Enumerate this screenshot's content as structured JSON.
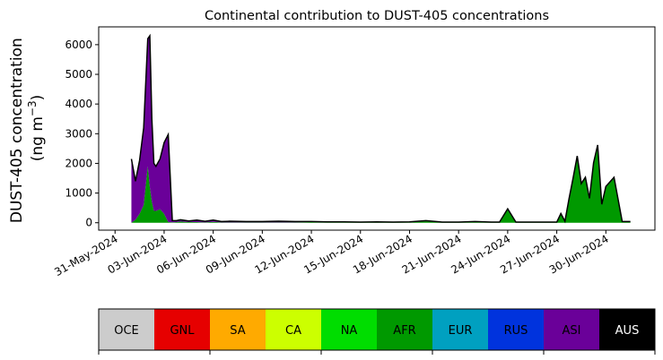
{
  "chart_data": {
    "type": "area",
    "title": "Continental contribution to DUST-405 concentrations",
    "ylabel_line1": "DUST-405 concentration",
    "ylabel_line2_prefix": "(ng m",
    "ylabel_line2_sup": "−3",
    "ylabel_line2_suffix": ")",
    "xlabel": "",
    "ylim": [
      -250,
      6600
    ],
    "xlim": [
      "2024-05-30",
      "2024-07-03"
    ],
    "yticks": [
      0,
      1000,
      2000,
      3000,
      4000,
      5000,
      6000
    ],
    "xticks": [
      "2024-05-31",
      "2024-06-03",
      "2024-06-06",
      "2024-06-09",
      "2024-06-12",
      "2024-06-15",
      "2024-06-18",
      "2024-06-21",
      "2024-06-24",
      "2024-06-27",
      "2024-06-30"
    ],
    "xtick_labels": [
      "31-May-2024",
      "03-Jun-2024",
      "06-Jun-2024",
      "09-Jun-2024",
      "12-Jun-2024",
      "15-Jun-2024",
      "18-Jun-2024",
      "21-Jun-2024",
      "24-Jun-2024",
      "27-Jun-2024",
      "30-Jun-2024"
    ],
    "grid": false,
    "x": [
      "2024-06-01T00:00",
      "2024-06-01T06:00",
      "2024-06-01T12:00",
      "2024-06-01T18:00",
      "2024-06-02T00:00",
      "2024-06-02T03:00",
      "2024-06-02T06:00",
      "2024-06-02T09:00",
      "2024-06-02T12:00",
      "2024-06-02T18:00",
      "2024-06-03T00:00",
      "2024-06-03T06:00",
      "2024-06-03T12:00",
      "2024-06-03T18:00",
      "2024-06-04T00:00",
      "2024-06-04T12:00",
      "2024-06-05T00:00",
      "2024-06-05T12:00",
      "2024-06-06T00:00",
      "2024-06-06T12:00",
      "2024-06-07T00:00",
      "2024-06-08T00:00",
      "2024-06-09T00:00",
      "2024-06-10T00:00",
      "2024-06-11T00:00",
      "2024-06-12T00:00",
      "2024-06-13T00:00",
      "2024-06-14T00:00",
      "2024-06-15T00:00",
      "2024-06-16T00:00",
      "2024-06-17T00:00",
      "2024-06-18T00:00",
      "2024-06-19T00:00",
      "2024-06-20T00:00",
      "2024-06-21T00:00",
      "2024-06-22T00:00",
      "2024-06-23T00:00",
      "2024-06-23T12:00",
      "2024-06-24T00:00",
      "2024-06-24T12:00",
      "2024-06-25T00:00",
      "2024-06-25T12:00",
      "2024-06-26T00:00",
      "2024-06-26T12:00",
      "2024-06-27T00:00",
      "2024-06-27T06:00",
      "2024-06-27T12:00",
      "2024-06-27T18:00",
      "2024-06-28T00:00",
      "2024-06-28T06:00",
      "2024-06-28T12:00",
      "2024-06-28T18:00",
      "2024-06-29T00:00",
      "2024-06-29T06:00",
      "2024-06-29T12:00",
      "2024-06-29T18:00",
      "2024-06-30T00:00",
      "2024-06-30T12:00",
      "2024-07-01T00:00",
      "2024-07-01T12:00"
    ],
    "series": [
      {
        "name": "OCE",
        "color": "#cccccc",
        "values": [
          0,
          0,
          0,
          0,
          0,
          0,
          0,
          0,
          0,
          0,
          0,
          0,
          0,
          0,
          0,
          0,
          0,
          0,
          0,
          0,
          0,
          0,
          0,
          0,
          0,
          0,
          0,
          0,
          0,
          0,
          0,
          0,
          0,
          0,
          0,
          0,
          0,
          0,
          0,
          0,
          0,
          0,
          0,
          0,
          0,
          0,
          0,
          0,
          0,
          0,
          0,
          0,
          0,
          0,
          0,
          0,
          0,
          0,
          0,
          0
        ]
      },
      {
        "name": "GNL",
        "color": "#e60000",
        "values": [
          0,
          0,
          0,
          0,
          0,
          0,
          0,
          0,
          0,
          0,
          0,
          0,
          0,
          0,
          0,
          0,
          0,
          0,
          0,
          0,
          0,
          0,
          0,
          0,
          0,
          0,
          0,
          0,
          0,
          0,
          0,
          0,
          0,
          0,
          0,
          0,
          0,
          0,
          0,
          0,
          0,
          0,
          0,
          0,
          0,
          0,
          0,
          0,
          0,
          0,
          0,
          0,
          0,
          0,
          0,
          0,
          0,
          0,
          0,
          0
        ]
      },
      {
        "name": "SA",
        "color": "#ffaa00",
        "values": [
          0,
          0,
          0,
          0,
          0,
          0,
          0,
          0,
          0,
          0,
          0,
          0,
          0,
          0,
          0,
          0,
          0,
          0,
          0,
          0,
          0,
          0,
          0,
          0,
          0,
          0,
          0,
          0,
          0,
          0,
          0,
          0,
          0,
          0,
          0,
          0,
          0,
          0,
          0,
          0,
          0,
          0,
          0,
          0,
          0,
          0,
          0,
          0,
          0,
          0,
          0,
          0,
          0,
          0,
          0,
          0,
          0,
          0,
          0,
          0
        ]
      },
      {
        "name": "CA",
        "color": "#ccff00",
        "values": [
          0,
          0,
          0,
          0,
          0,
          0,
          0,
          0,
          0,
          0,
          0,
          0,
          0,
          0,
          0,
          0,
          0,
          0,
          0,
          0,
          0,
          0,
          0,
          0,
          0,
          0,
          0,
          0,
          0,
          0,
          0,
          0,
          0,
          0,
          0,
          0,
          0,
          0,
          0,
          0,
          0,
          0,
          0,
          0,
          0,
          0,
          0,
          0,
          0,
          0,
          0,
          0,
          0,
          0,
          0,
          0,
          0,
          0,
          0,
          0
        ]
      },
      {
        "name": "NA",
        "color": "#00dd00",
        "values": [
          0,
          0,
          0,
          0,
          0,
          0,
          0,
          0,
          0,
          0,
          0,
          0,
          0,
          0,
          0,
          0,
          0,
          0,
          0,
          0,
          0,
          0,
          0,
          0,
          0,
          0,
          0,
          0,
          0,
          0,
          0,
          0,
          0,
          0,
          0,
          0,
          0,
          0,
          0,
          0,
          0,
          0,
          0,
          0,
          0,
          0,
          0,
          0,
          0,
          0,
          0,
          0,
          0,
          0,
          0,
          0,
          0,
          0,
          0,
          0
        ]
      },
      {
        "name": "AFR",
        "color": "#009900",
        "values": [
          0,
          100,
          300,
          600,
          1900,
          1200,
          700,
          400,
          400,
          450,
          300,
          20,
          15,
          20,
          40,
          20,
          20,
          10,
          30,
          10,
          10,
          10,
          10,
          10,
          10,
          20,
          10,
          10,
          10,
          10,
          10,
          10,
          50,
          10,
          10,
          30,
          10,
          10,
          450,
          10,
          10,
          10,
          10,
          10,
          10,
          300,
          40,
          800,
          1500,
          2200,
          1300,
          1500,
          800,
          2000,
          2600,
          600,
          1200,
          1500,
          20,
          20
        ]
      },
      {
        "name": "EUR",
        "color": "#00a0c0",
        "values": [
          0,
          0,
          0,
          0,
          0,
          0,
          0,
          0,
          0,
          0,
          0,
          0,
          0,
          0,
          0,
          0,
          0,
          0,
          0,
          0,
          0,
          0,
          0,
          0,
          0,
          0,
          0,
          0,
          0,
          0,
          0,
          0,
          0,
          0,
          0,
          0,
          0,
          0,
          0,
          0,
          0,
          0,
          0,
          0,
          0,
          0,
          0,
          0,
          0,
          0,
          0,
          0,
          0,
          0,
          0,
          0,
          0,
          0,
          0,
          0
        ]
      },
      {
        "name": "RUS",
        "color": "#0033dd",
        "values": [
          0,
          0,
          0,
          0,
          0,
          0,
          0,
          0,
          0,
          0,
          0,
          0,
          0,
          0,
          0,
          0,
          0,
          0,
          0,
          0,
          0,
          0,
          0,
          0,
          0,
          0,
          0,
          0,
          0,
          0,
          0,
          0,
          0,
          0,
          0,
          0,
          0,
          0,
          0,
          0,
          0,
          0,
          0,
          0,
          0,
          0,
          0,
          0,
          0,
          0,
          0,
          0,
          0,
          0,
          0,
          0,
          0,
          0,
          0,
          0
        ]
      },
      {
        "name": "ASI",
        "color": "#6a0099",
        "values": [
          2150,
          1300,
          1800,
          2600,
          4300,
          5100,
          2800,
          1600,
          1500,
          1700,
          2400,
          2950,
          60,
          50,
          60,
          40,
          70,
          40,
          60,
          30,
          40,
          30,
          30,
          40,
          30,
          20,
          20,
          20,
          10,
          20,
          10,
          20,
          20,
          10,
          10,
          10,
          10,
          10,
          20,
          10,
          10,
          10,
          10,
          10,
          10,
          10,
          10,
          10,
          10,
          50,
          20,
          30,
          20,
          20,
          20,
          20,
          20,
          30,
          20,
          20
        ]
      },
      {
        "name": "AUS",
        "color": "#000000",
        "values": [
          0,
          0,
          0,
          0,
          0,
          0,
          0,
          0,
          0,
          0,
          0,
          0,
          0,
          0,
          0,
          0,
          0,
          0,
          0,
          0,
          0,
          0,
          0,
          0,
          0,
          0,
          0,
          0,
          0,
          0,
          0,
          0,
          0,
          0,
          0,
          0,
          0,
          0,
          0,
          0,
          0,
          0,
          0,
          0,
          0,
          0,
          0,
          0,
          0,
          0,
          0,
          0,
          0,
          0,
          0,
          0,
          0,
          0,
          0,
          0
        ]
      }
    ],
    "legend_placement": "bottom-colorbar",
    "legend": [
      {
        "label": "OCE",
        "color": "#cccccc",
        "text_color": "#000000"
      },
      {
        "label": "GNL",
        "color": "#e60000",
        "text_color": "#000000"
      },
      {
        "label": "SA",
        "color": "#ffaa00",
        "text_color": "#000000"
      },
      {
        "label": "CA",
        "color": "#ccff00",
        "text_color": "#000000"
      },
      {
        "label": "NA",
        "color": "#00dd00",
        "text_color": "#000000"
      },
      {
        "label": "AFR",
        "color": "#009900",
        "text_color": "#000000"
      },
      {
        "label": "EUR",
        "color": "#00a0c0",
        "text_color": "#000000"
      },
      {
        "label": "RUS",
        "color": "#0033dd",
        "text_color": "#000000"
      },
      {
        "label": "ASI",
        "color": "#6a0099",
        "text_color": "#000000"
      },
      {
        "label": "AUS",
        "color": "#000000",
        "text_color": "#ffffff"
      }
    ]
  }
}
